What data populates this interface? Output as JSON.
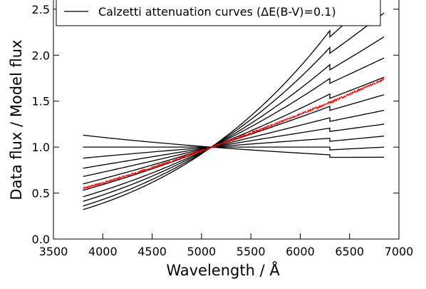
{
  "chart_data": {
    "type": "line",
    "title": "",
    "xlabel": "Wavelength / Å",
    "ylabel": "Data flux / Model flux",
    "xlim": [
      3500,
      7000
    ],
    "ylim": [
      0.0,
      2.6
    ],
    "xticks": [
      3500,
      4000,
      4500,
      5000,
      5500,
      6000,
      6500,
      7000
    ],
    "yticks": [
      0.0,
      0.5,
      1.0,
      1.5,
      2.0,
      2.5
    ],
    "grid": false,
    "legend": {
      "position": "top",
      "entries": [
        "Calzetti attenuation curves (ΔE(B-V)=0.1)"
      ]
    },
    "colors": {
      "curves": "#000000",
      "data": "#ff0000"
    },
    "reference_wavelength": 5100,
    "x_start": 3800,
    "x_end": 6850,
    "break_wavelength": 6300,
    "curves": [
      {
        "dEBV": -0.1,
        "y_start": 1.13,
        "y_end": 0.89
      },
      {
        "dEBV": 0.0,
        "y_start": 1.0,
        "y_end": 1.0
      },
      {
        "dEBV": 0.1,
        "y_start": 0.88,
        "y_end": 1.12
      },
      {
        "dEBV": 0.2,
        "y_start": 0.77,
        "y_end": 1.25
      },
      {
        "dEBV": 0.3,
        "y_start": 0.68,
        "y_end": 1.4
      },
      {
        "dEBV": 0.4,
        "y_start": 0.6,
        "y_end": 1.57
      },
      {
        "dEBV": 0.5,
        "y_start": 0.53,
        "y_end": 1.76
      },
      {
        "dEBV": 0.6,
        "y_start": 0.46,
        "y_end": 1.97
      },
      {
        "dEBV": 0.7,
        "y_start": 0.41,
        "y_end": 2.2
      },
      {
        "dEBV": 0.8,
        "y_start": 0.36,
        "y_end": 2.46
      },
      {
        "dEBV": 0.9,
        "y_start": 0.32,
        "y_end": 2.75
      }
    ],
    "data_ratio": {
      "y_start": 0.55,
      "y_end": 1.74,
      "noise": 0.012
    }
  }
}
